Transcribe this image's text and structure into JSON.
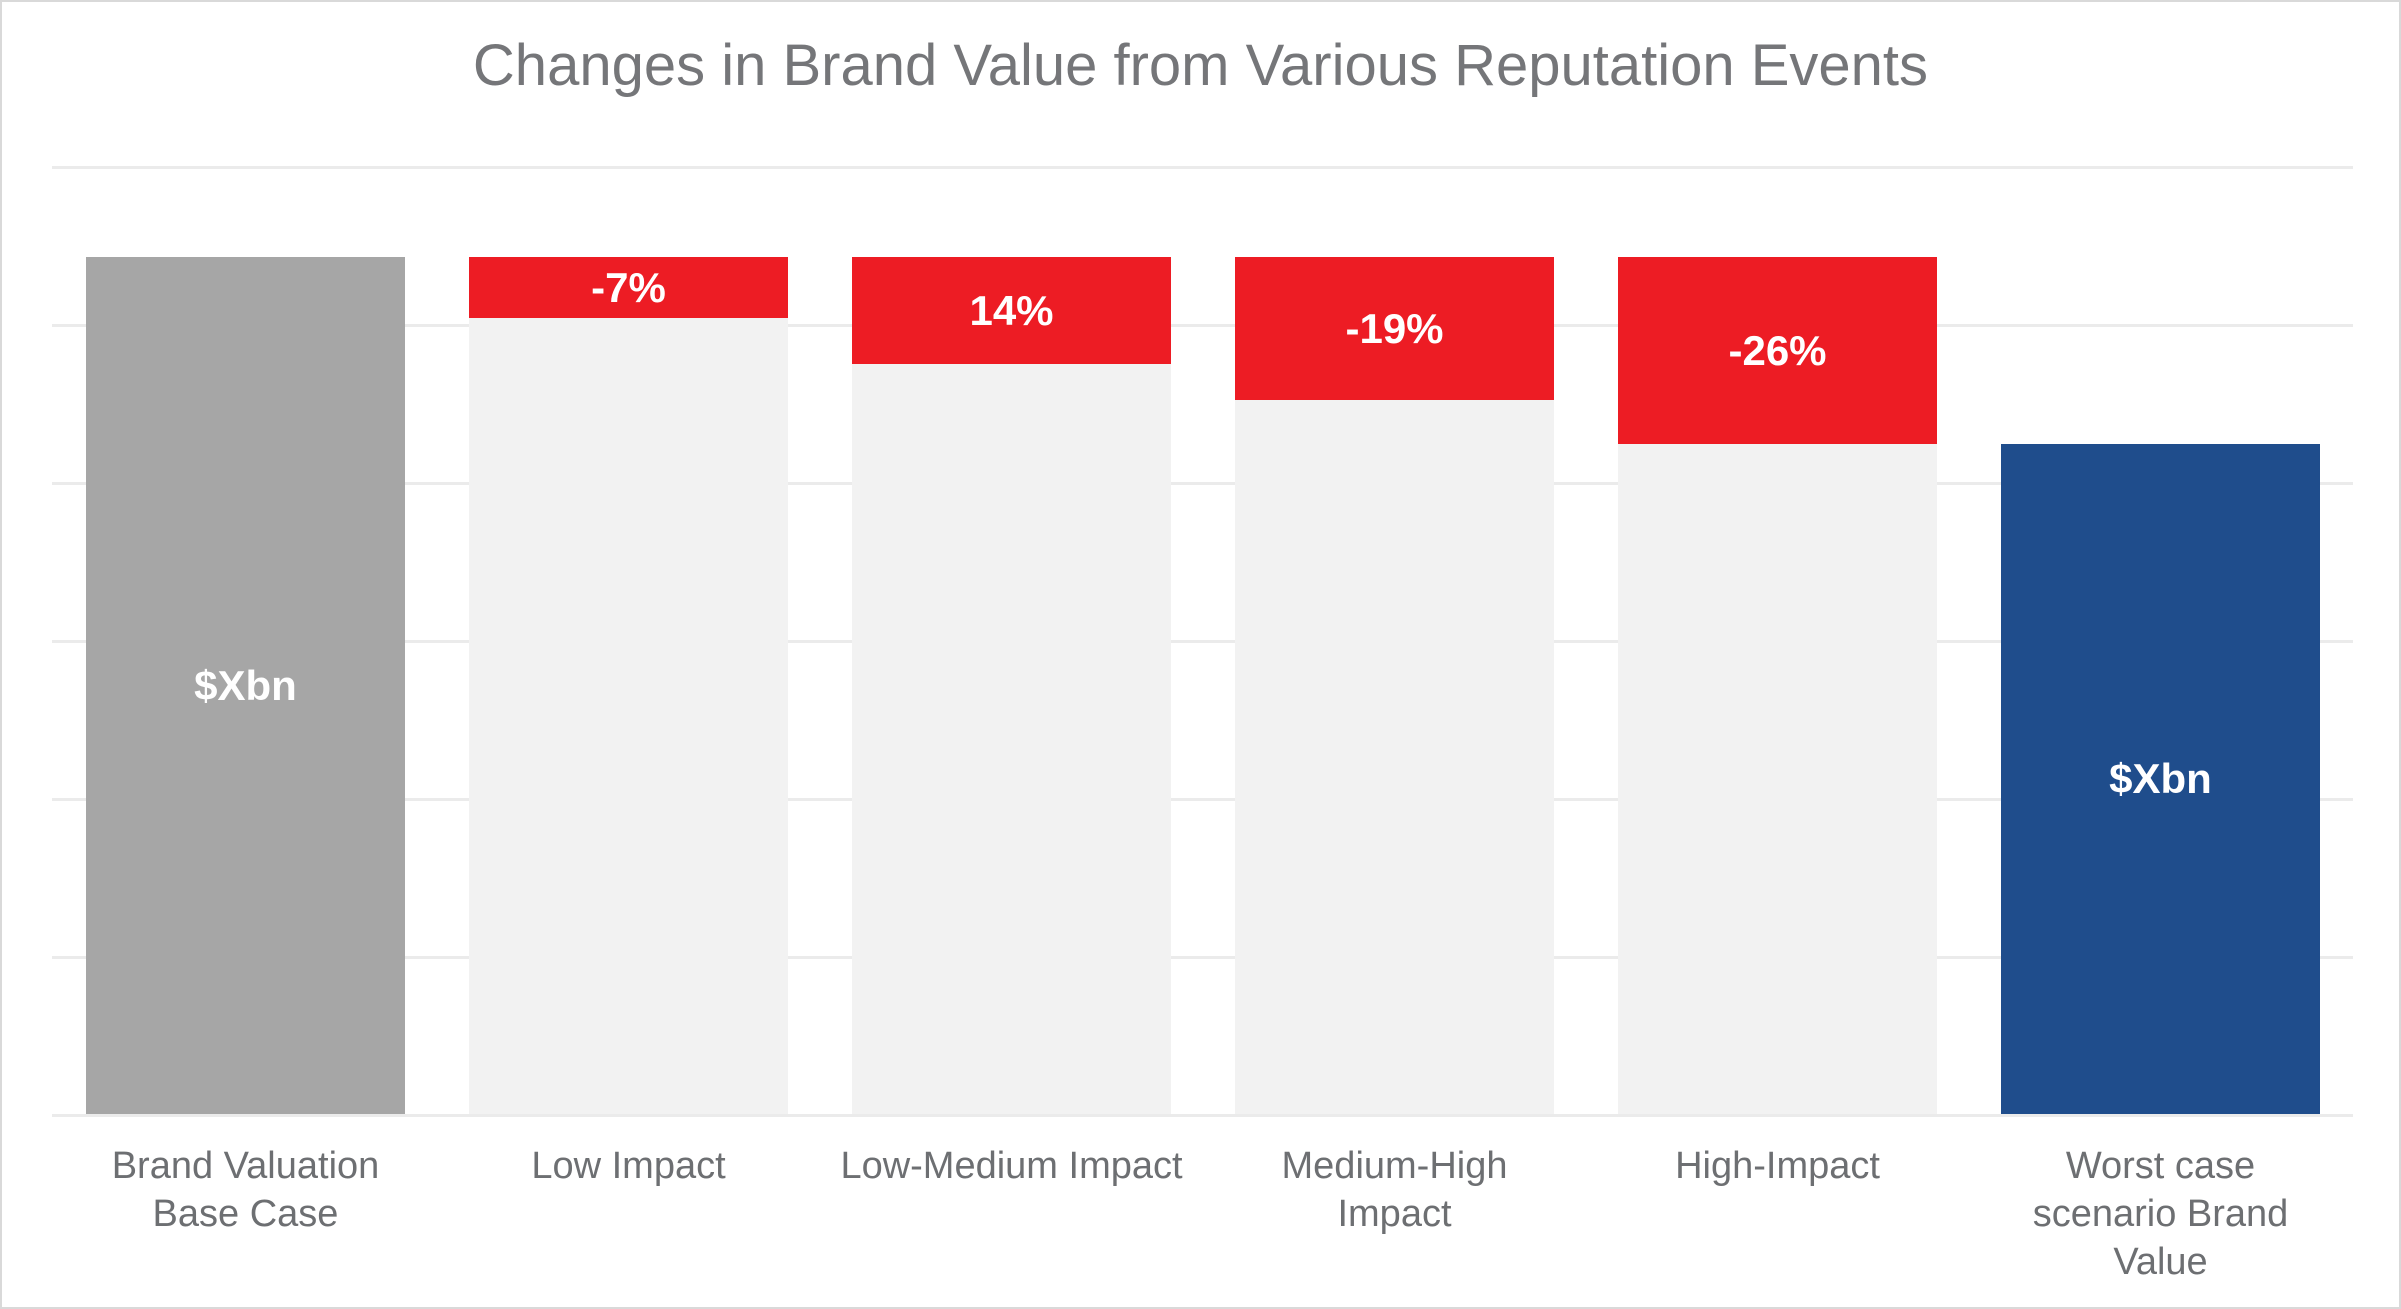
{
  "chart_data": {
    "type": "bar",
    "subtype": "waterfall-scenarios",
    "title": "Changes in Brand Value from Various Reputation Events",
    "xlabel": "",
    "ylabel": "",
    "legend": "none",
    "grid": "horizontal",
    "gridline_count": 7,
    "axis_tick_labels": "none",
    "categories": [
      "Brand Valuation Base Case",
      "Low Impact",
      "Low-Medium Impact",
      "Medium-High Impact",
      "High-Impact",
      "Worst case scenario Brand Value"
    ],
    "bars": [
      {
        "category_lines": [
          "Brand Valuation",
          "Base Case"
        ],
        "kind": "base",
        "value_label": "$Xbn",
        "change_label": null,
        "drawn_total_pct": 100,
        "drawn_drop_pct": 0,
        "body_color": "#a6a6a6"
      },
      {
        "category_lines": [
          "Low Impact"
        ],
        "kind": "impact",
        "value_label": null,
        "change_label": "-7%",
        "drawn_total_pct": 100,
        "drawn_drop_pct": 7.1,
        "body_color": "#f2f2f2",
        "drop_color": "#ed1c24"
      },
      {
        "category_lines": [
          "Low-Medium Impact"
        ],
        "kind": "impact",
        "value_label": null,
        "change_label": "14%",
        "drawn_total_pct": 100,
        "drawn_drop_pct": 12.5,
        "body_color": "#f2f2f2",
        "drop_color": "#ed1c24"
      },
      {
        "category_lines": [
          "Medium-High",
          "Impact"
        ],
        "kind": "impact",
        "value_label": null,
        "change_label": "-19%",
        "drawn_total_pct": 100,
        "drawn_drop_pct": 16.7,
        "body_color": "#f2f2f2",
        "drop_color": "#ed1c24"
      },
      {
        "category_lines": [
          "High-Impact"
        ],
        "kind": "impact",
        "value_label": null,
        "change_label": "-26%",
        "drawn_total_pct": 100,
        "drawn_drop_pct": 21.8,
        "body_color": "#f2f2f2",
        "drop_color": "#ed1c24"
      },
      {
        "category_lines": [
          "Worst case",
          "scenario Brand",
          "Value"
        ],
        "kind": "result",
        "value_label": "$Xbn",
        "change_label": null,
        "drawn_total_pct": 78.2,
        "drawn_drop_pct": 0,
        "body_color": "#1f4d8c"
      }
    ],
    "colors": {
      "base_bar": "#a6a6a6",
      "impact_body": "#f2f2f2",
      "impact_drop": "#ed1c24",
      "result_bar": "#1f4d8c",
      "gridline": "#ebebeb",
      "title_text": "#757679",
      "category_text": "#6d6f72",
      "value_text": "#ffffff"
    }
  }
}
